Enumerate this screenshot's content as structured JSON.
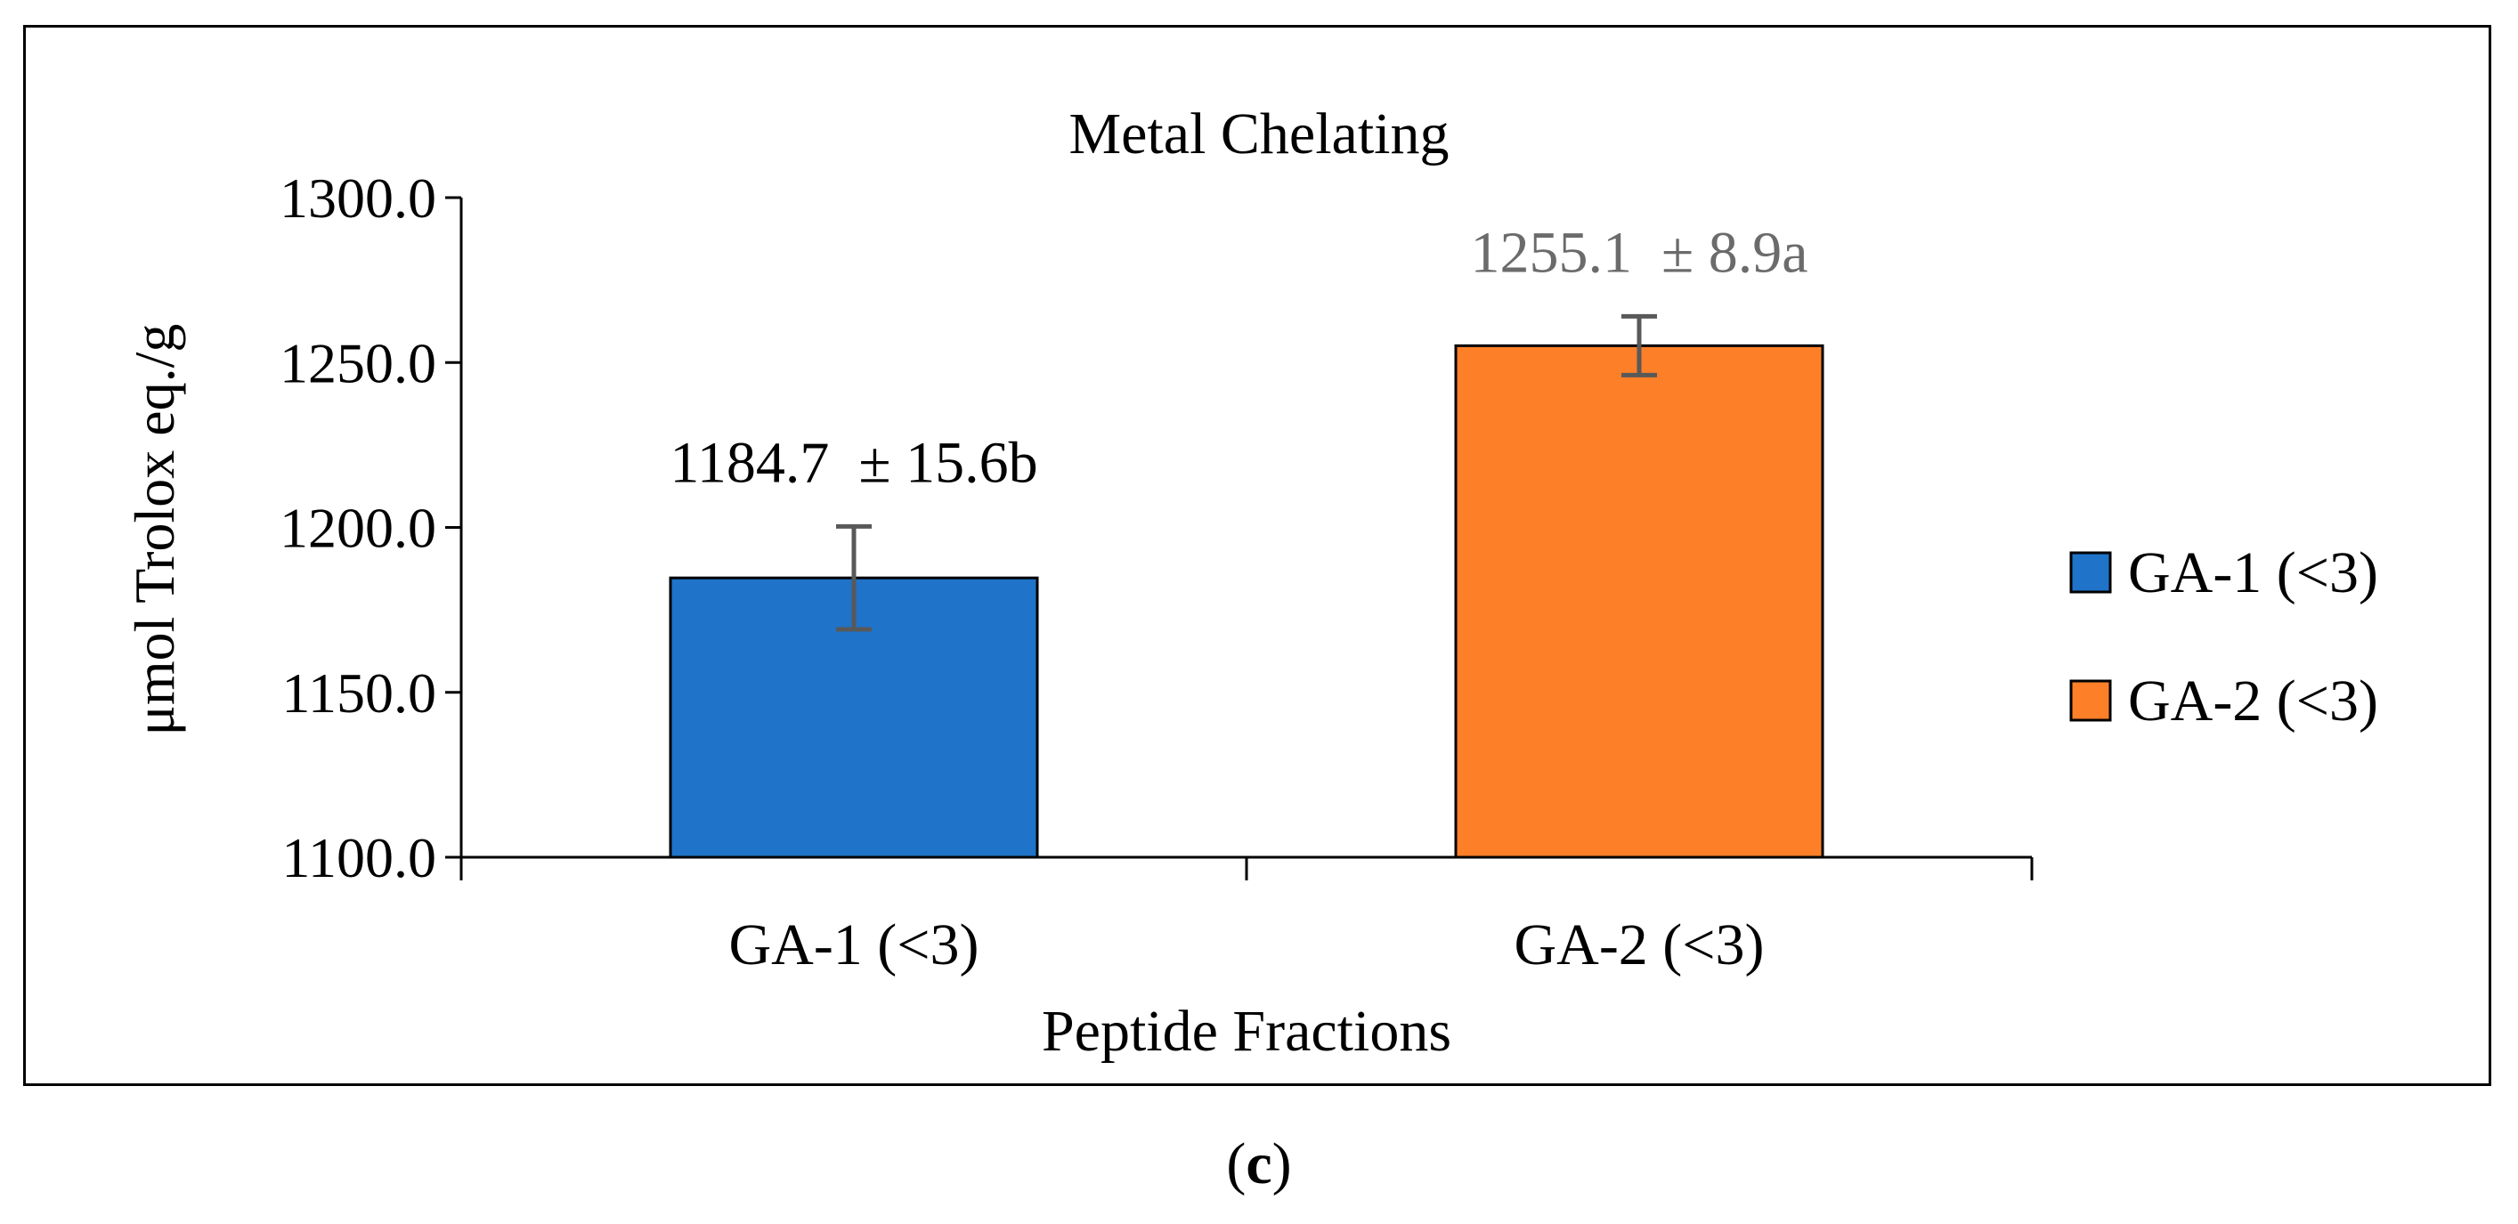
{
  "chart_data": {
    "type": "bar",
    "title": "Metal Chelating",
    "xlabel": "Peptide Fractions",
    "ylabel": "μmol Trolox eq./g",
    "categories": [
      "GA-1 (<3)",
      "GA-2 (<3)"
    ],
    "values": [
      1184.7,
      1255.1
    ],
    "errors": [
      15.6,
      8.9
    ],
    "data_labels": [
      "1184.7  ± 15.6b",
      "1255.1  ± 8.9a"
    ],
    "ylim": [
      1100.0,
      1300.0
    ],
    "yticks": [
      "1100.0",
      "1150.0",
      "1200.0",
      "1250.0",
      "1300.0"
    ],
    "legend": [
      "GA-1 (<3)",
      "GA-2 (<3)"
    ],
    "legend_position": "right",
    "grid": false,
    "colors": [
      "#1f73c8",
      "#fd7f28"
    ],
    "error_bar_color": "#595959",
    "label_colors": [
      "#000000",
      "#6b6b6b"
    ]
  },
  "caption": {
    "open": "(",
    "letter": "c",
    "close": ")"
  }
}
